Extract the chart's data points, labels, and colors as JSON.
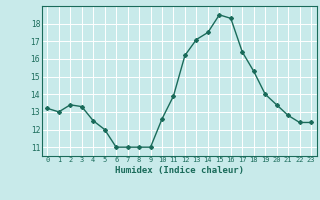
{
  "x": [
    0,
    1,
    2,
    3,
    4,
    5,
    6,
    7,
    8,
    9,
    10,
    11,
    12,
    13,
    14,
    15,
    16,
    17,
    18,
    19,
    20,
    21,
    22,
    23
  ],
  "y": [
    13.2,
    13.0,
    13.4,
    13.3,
    12.5,
    12.0,
    11.0,
    11.0,
    11.0,
    11.0,
    12.6,
    13.9,
    16.2,
    17.1,
    17.5,
    18.5,
    18.3,
    16.4,
    15.3,
    14.0,
    13.4,
    12.8,
    12.4,
    12.4
  ],
  "xlabel": "Humidex (Indice chaleur)",
  "ylim": [
    10.5,
    19.0
  ],
  "xlim": [
    -0.5,
    23.5
  ],
  "yticks": [
    11,
    12,
    13,
    14,
    15,
    16,
    17,
    18
  ],
  "xtick_labels": [
    "0",
    "1",
    "2",
    "3",
    "4",
    "5",
    "6",
    "7",
    "8",
    "9",
    "10",
    "11",
    "12",
    "13",
    "14",
    "15",
    "16",
    "17",
    "18",
    "19",
    "20",
    "21",
    "22",
    "23"
  ],
  "line_color": "#1a6b5a",
  "bg_color": "#c8eaea",
  "grid_color": "#ffffff",
  "marker": "D",
  "marker_size": 2,
  "line_width": 1.0,
  "tick_label_color": "#1a6b5a",
  "xlabel_color": "#1a6b5a"
}
